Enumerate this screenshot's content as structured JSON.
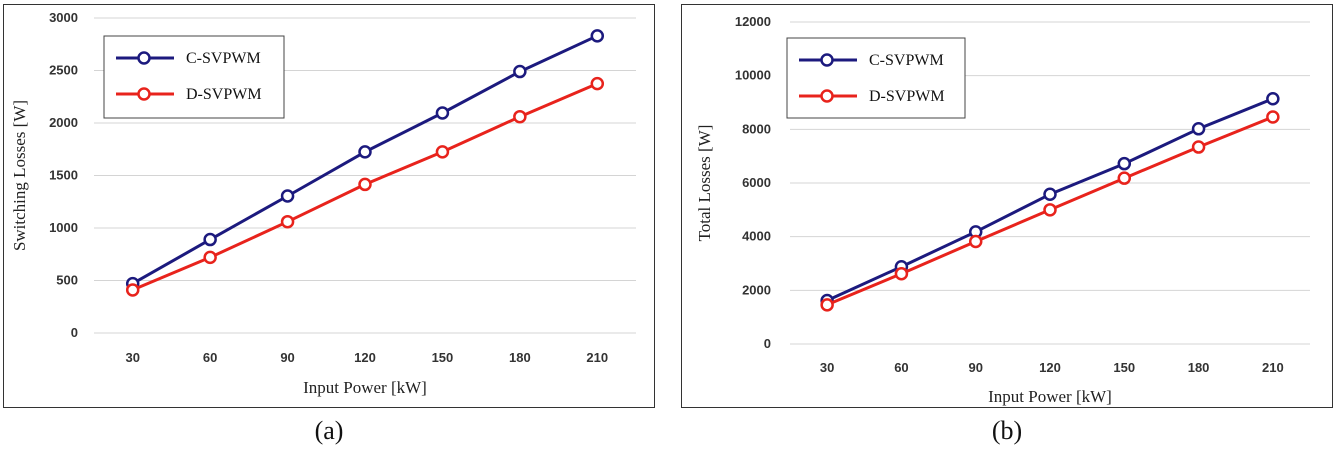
{
  "colors": {
    "c_svpwm": "#1c1a7e",
    "d_svpwm": "#e8231c",
    "grid": "#d4d4d4"
  },
  "captions": [
    "(a)",
    "(b)"
  ],
  "chart_data": [
    {
      "type": "line",
      "panel_label": "(a)",
      "categories": [
        "30",
        "60",
        "90",
        "120",
        "150",
        "180",
        "210"
      ],
      "x": [
        30,
        60,
        90,
        120,
        150,
        180,
        210
      ],
      "series": [
        {
          "name": "C-SVPWM",
          "values": [
            470,
            890,
            1305,
            1725,
            2095,
            2490,
            2830
          ]
        },
        {
          "name": "D-SVPWM",
          "values": [
            410,
            720,
            1060,
            1415,
            1725,
            2060,
            2375
          ]
        }
      ],
      "ylabel": "Switching Losses [W]",
      "xlabel": "Input Power [kW]",
      "ylim": [
        0,
        3000
      ],
      "yticks": [
        0,
        500,
        1000,
        1500,
        2000,
        2500,
        3000
      ],
      "grid": true,
      "legend": "top-left",
      "marker": "open-circle"
    },
    {
      "type": "line",
      "panel_label": "(b)",
      "categories": [
        "30",
        "60",
        "90",
        "120",
        "150",
        "180",
        "210"
      ],
      "x": [
        30,
        60,
        90,
        120,
        150,
        180,
        210
      ],
      "series": [
        {
          "name": "C-SVPWM",
          "values": [
            1620,
            2880,
            4180,
            5580,
            6720,
            8020,
            9140
          ]
        },
        {
          "name": "D-SVPWM",
          "values": [
            1460,
            2620,
            3820,
            5000,
            6180,
            7340,
            8460
          ]
        }
      ],
      "ylabel": "Total Losses [W]",
      "xlabel": "Input Power [kW]",
      "ylim": [
        0,
        12000
      ],
      "yticks": [
        0,
        2000,
        4000,
        6000,
        8000,
        10000,
        12000
      ],
      "grid": true,
      "legend": "top-left",
      "marker": "open-circle"
    }
  ]
}
